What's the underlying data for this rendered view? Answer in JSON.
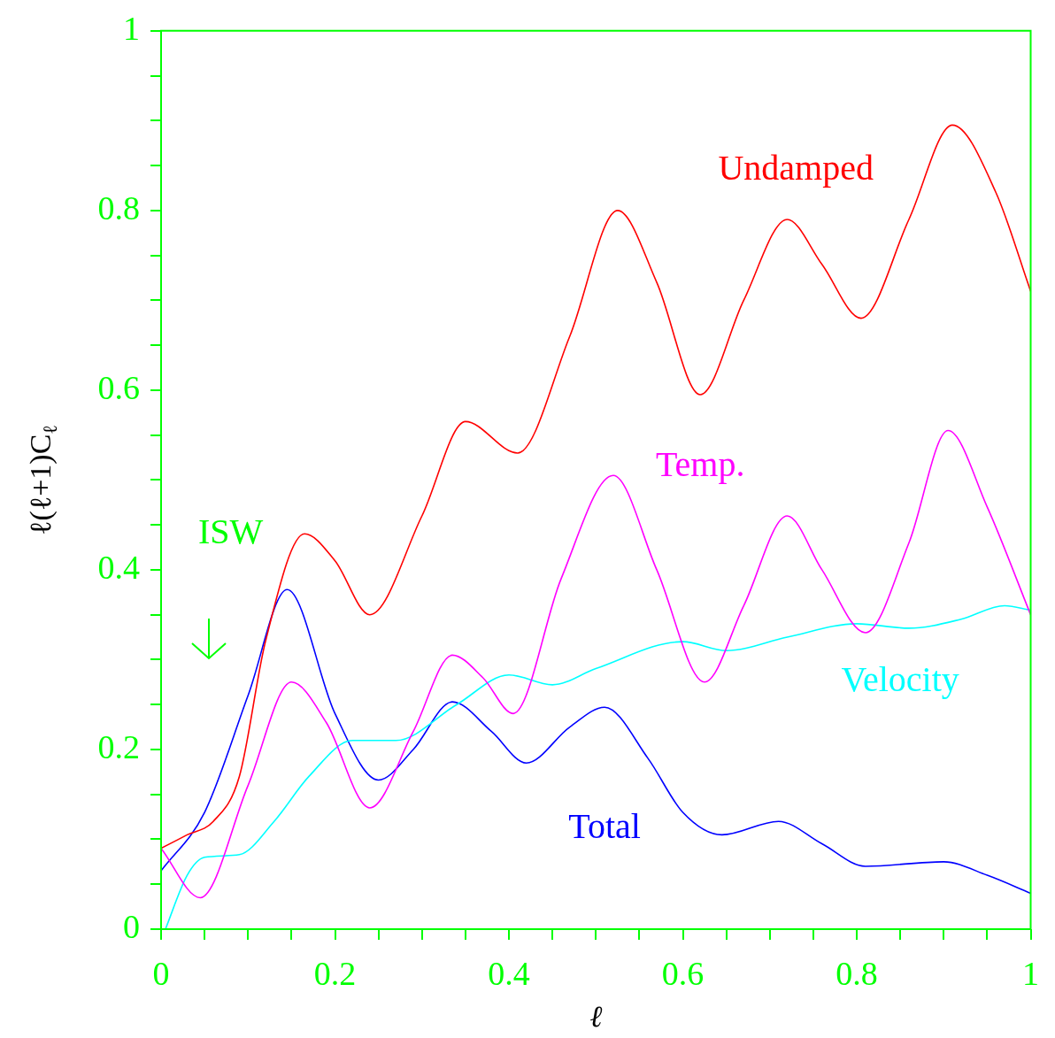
{
  "chart_data": {
    "type": "line",
    "xlabel": "ℓ",
    "ylabel": "ℓ(ℓ+1)C$_{ℓ}$",
    "xlim": [
      0,
      1
    ],
    "ylim": [
      0,
      1
    ],
    "xticks": [
      0,
      {
        "value": 0.05,
        "label": null
      },
      {
        "value": 0.1,
        "label": null
      },
      {
        "value": 0.15,
        "label": null
      },
      0.2,
      {
        "value": 0.25,
        "label": null
      },
      {
        "value": 0.3,
        "label": null
      },
      {
        "value": 0.35,
        "label": null
      },
      0.4,
      {
        "value": 0.45,
        "label": null
      },
      {
        "value": 0.5,
        "label": null
      },
      {
        "value": 0.55,
        "label": null
      },
      0.6,
      {
        "value": 0.65,
        "label": null
      },
      {
        "value": 0.7,
        "label": null
      },
      {
        "value": 0.75,
        "label": null
      },
      0.8,
      {
        "value": 0.85,
        "label": null
      },
      {
        "value": 0.9,
        "label": null
      },
      {
        "value": 0.95,
        "label": null
      },
      1
    ],
    "yticks": [
      0,
      {
        "value": 0.05,
        "label": null
      },
      {
        "value": 0.1,
        "label": null
      },
      {
        "value": 0.15,
        "label": null
      },
      0.2,
      {
        "value": 0.25,
        "label": null
      },
      {
        "value": 0.3,
        "label": null
      },
      {
        "value": 0.35,
        "label": null
      },
      0.4,
      {
        "value": 0.45,
        "label": null
      },
      {
        "value": 0.5,
        "label": null
      },
      {
        "value": 0.55,
        "label": null
      },
      0.6,
      {
        "value": 0.65,
        "label": null
      },
      {
        "value": 0.7,
        "label": null
      },
      {
        "value": 0.75,
        "label": null
      },
      0.8,
      {
        "value": 0.85,
        "label": null
      },
      {
        "value": 0.9,
        "label": null
      },
      {
        "value": 0.95,
        "label": null
      },
      1
    ],
    "grid": false,
    "legend": false,
    "marker": "none",
    "line_style": "solid",
    "series": [
      {
        "name": "Undamped",
        "color": "#ff0000",
        "x": [
          0,
          0.03,
          0.06,
          0.09,
          0.12,
          0.165,
          0.2,
          0.24,
          0.3,
          0.35,
          0.41,
          0.47,
          0.525,
          0.57,
          0.62,
          0.67,
          0.72,
          0.76,
          0.805,
          0.86,
          0.91,
          0.96,
          1.0
        ],
        "values": [
          0.09,
          0.105,
          0.12,
          0.17,
          0.32,
          0.44,
          0.41,
          0.35,
          0.46,
          0.565,
          0.53,
          0.66,
          0.8,
          0.72,
          0.595,
          0.7,
          0.79,
          0.74,
          0.68,
          0.79,
          0.895,
          0.82,
          0.71
        ]
      },
      {
        "name": "Temp.",
        "color": "#ff00ff",
        "x": [
          0,
          0.045,
          0.1,
          0.15,
          0.19,
          0.24,
          0.29,
          0.335,
          0.37,
          0.405,
          0.46,
          0.52,
          0.57,
          0.625,
          0.67,
          0.72,
          0.76,
          0.81,
          0.86,
          0.905,
          0.95,
          1.0
        ],
        "values": [
          0.09,
          0.035,
          0.16,
          0.275,
          0.23,
          0.135,
          0.22,
          0.305,
          0.28,
          0.24,
          0.39,
          0.505,
          0.4,
          0.275,
          0.36,
          0.46,
          0.4,
          0.33,
          0.43,
          0.555,
          0.47,
          0.35
        ]
      },
      {
        "name": "Velocity",
        "color": "#00ffff",
        "x": [
          0.005,
          0.03,
          0.05,
          0.09,
          0.13,
          0.17,
          0.22,
          0.27,
          0.34,
          0.4,
          0.45,
          0.5,
          0.6,
          0.65,
          0.72,
          0.8,
          0.86,
          0.92,
          0.97,
          1.0
        ],
        "values": [
          0,
          0.06,
          0.08,
          0.083,
          0.12,
          0.17,
          0.21,
          0.21,
          0.25,
          0.283,
          0.272,
          0.29,
          0.32,
          0.31,
          0.325,
          0.34,
          0.335,
          0.345,
          0.36,
          0.355
        ]
      },
      {
        "name": "Total",
        "color": "#0000ff",
        "x": [
          0,
          0.05,
          0.1,
          0.145,
          0.2,
          0.25,
          0.29,
          0.335,
          0.38,
          0.42,
          0.47,
          0.51,
          0.56,
          0.6,
          0.645,
          0.71,
          0.76,
          0.81,
          0.9,
          0.95,
          1.0
        ],
        "values": [
          0.065,
          0.13,
          0.26,
          0.378,
          0.24,
          0.166,
          0.2,
          0.253,
          0.22,
          0.185,
          0.225,
          0.247,
          0.19,
          0.13,
          0.105,
          0.12,
          0.095,
          0.07,
          0.075,
          0.06,
          0.04
        ]
      }
    ],
    "annotations": [
      "ISW"
    ]
  }
}
